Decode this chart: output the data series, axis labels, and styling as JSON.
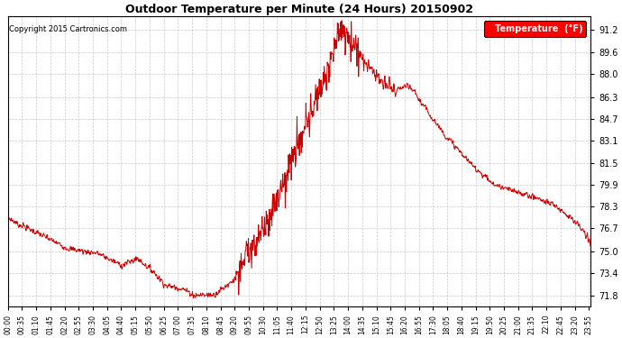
{
  "title": "Outdoor Temperature per Minute (24 Hours) 20150902",
  "copyright": "Copyright 2015 Cartronics.com",
  "legend_label": "Temperature  (°F)",
  "line_color": "#cc0000",
  "background_color": "#ffffff",
  "grid_color": "#bbbbbb",
  "yticks": [
    71.8,
    73.4,
    75.0,
    76.7,
    78.3,
    79.9,
    81.5,
    83.1,
    84.7,
    86.3,
    88.0,
    89.6,
    91.2
  ],
  "ylim": [
    71.0,
    92.2
  ],
  "xtick_step": 35,
  "total_minutes": 1440
}
